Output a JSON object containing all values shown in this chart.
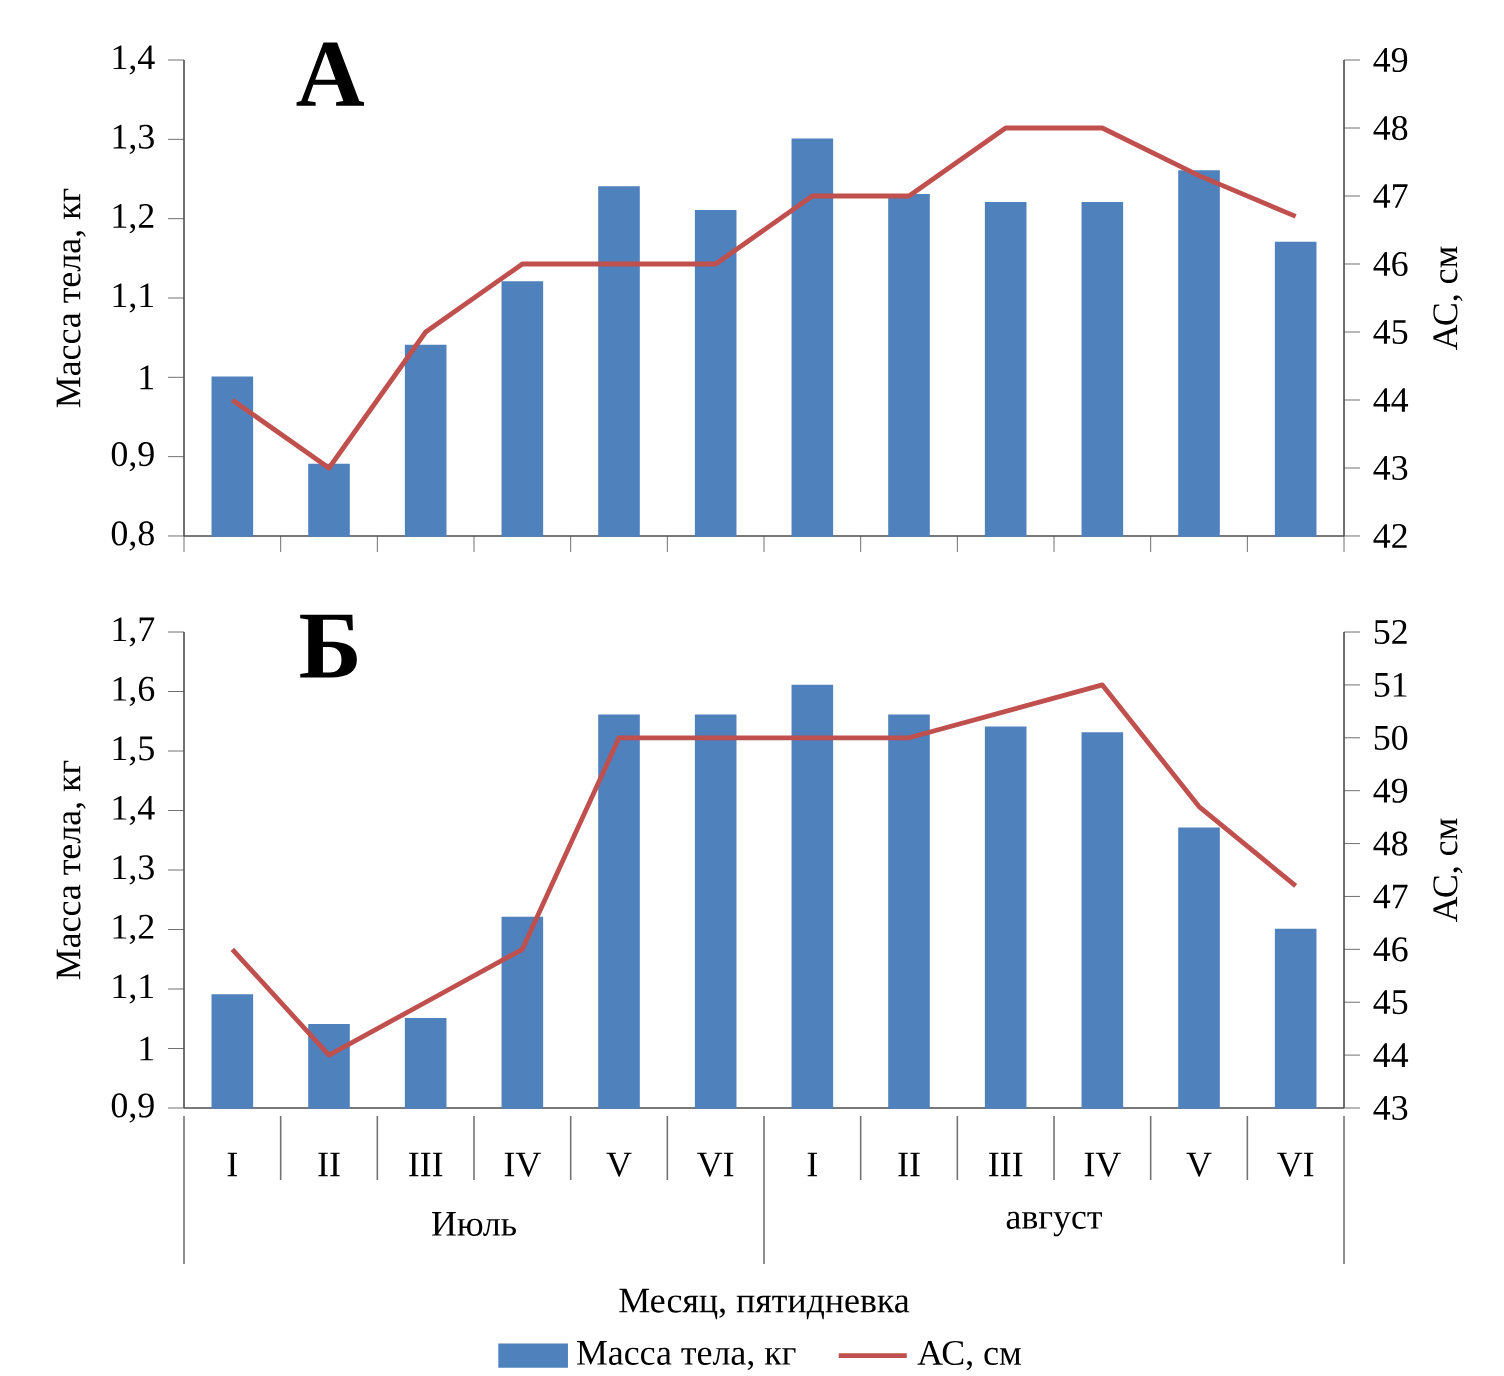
{
  "chart_data": [
    {
      "type": "bar",
      "title": "А",
      "ylabel": "Масса тела, кг",
      "y2label": "АС, см",
      "categories": [
        null,
        null,
        null,
        null,
        null,
        null,
        null,
        null,
        null,
        null,
        null,
        null
      ],
      "series": [
        {
          "color": "#4f81bd",
          "values": [
            1.0,
            0.89,
            1.04,
            1.12,
            1.24,
            1.21,
            1.3,
            1.23,
            1.22,
            1.22,
            1.26,
            1.17
          ]
        },
        {
          "type": "line",
          "axis": "y2",
          "color": "#c0504d",
          "values": [
            44,
            43,
            45,
            46,
            46,
            46,
            47,
            47,
            48,
            48,
            47.3,
            46.7
          ]
        }
      ],
      "ylim": [
        0.8,
        1.4
      ],
      "yticks": [
        {
          "value": 0.8,
          "label": "0,8"
        },
        {
          "value": 0.9,
          "label": "0,9"
        },
        1,
        {
          "value": 1.1,
          "label": "1,1"
        },
        {
          "value": 1.2,
          "label": "1,2"
        },
        {
          "value": 1.3,
          "label": "1,3"
        },
        {
          "value": 1.4,
          "label": "1,4"
        }
      ],
      "y2lim": [
        42,
        49
      ],
      "y2ticks": [
        42,
        43,
        44,
        45,
        46,
        47,
        48,
        49
      ],
      "tick_labels": "y",
      "legend": false
    },
    {
      "type": "bar",
      "title": "Б",
      "xlabel": "Месяц, пятидневка",
      "ylabel": "Масса тела, кг",
      "y2label": "АС, см",
      "categories": [
        "I",
        "II",
        "III",
        "IV",
        "V",
        "VI",
        "I",
        "II",
        "III",
        "IV",
        "V",
        "VI"
      ],
      "series": [
        {
          "name": "Масса тела, кг",
          "color": "#4f81bd",
          "values": [
            1.09,
            1.04,
            1.05,
            1.22,
            1.56,
            1.56,
            1.61,
            1.56,
            1.54,
            1.53,
            1.37,
            1.2
          ]
        },
        {
          "name": "АС, см",
          "type": "line",
          "axis": "y2",
          "color": "#c0504d",
          "values": [
            46,
            44,
            45,
            46,
            50,
            50,
            50,
            50,
            50.5,
            51,
            48.7,
            47.2
          ]
        }
      ],
      "ylim": [
        0.9,
        1.7
      ],
      "yticks": [
        {
          "value": 0.9,
          "label": "0,9"
        },
        1,
        {
          "value": 1.1,
          "label": "1,1"
        },
        {
          "value": 1.2,
          "label": "1,2"
        },
        {
          "value": 1.3,
          "label": "1,3"
        },
        {
          "value": 1.4,
          "label": "1,4"
        },
        {
          "value": 1.5,
          "label": "1,5"
        },
        {
          "value": 1.6,
          "label": "1,6"
        },
        {
          "value": 1.7,
          "label": "1,7"
        }
      ],
      "y2lim": [
        43,
        52
      ],
      "y2ticks": [
        43,
        44,
        45,
        46,
        47,
        48,
        49,
        50,
        51,
        52
      ],
      "annotations": [
        "Июль",
        "август"
      ],
      "legend": "bottom"
    }
  ]
}
